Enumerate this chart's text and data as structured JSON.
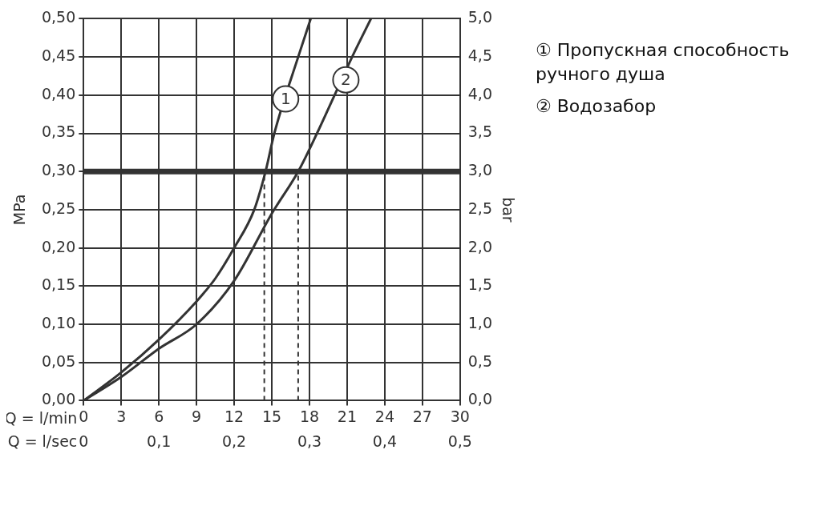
{
  "chart_data": {
    "type": "line",
    "xlabel": "Q = l/min",
    "x2label": "Q = l/sec",
    "ylabel": "MPa",
    "y2label": "bar",
    "xlim": [
      0,
      30
    ],
    "xticks": [
      0,
      3,
      6,
      9,
      12,
      15,
      18,
      21,
      24,
      27,
      30
    ],
    "x2lim": [
      0,
      0.5
    ],
    "x2ticks": [
      {
        "value": 0,
        "label": "0"
      },
      {
        "value": 0.1,
        "label": "0,1"
      },
      {
        "value": 0.2,
        "label": "0,2"
      },
      {
        "value": 0.3,
        "label": "0,3"
      },
      {
        "value": 0.4,
        "label": "0,4"
      },
      {
        "value": 0.5,
        "label": "0,5"
      }
    ],
    "ylim": [
      0,
      0.5
    ],
    "yticks": [
      {
        "value": 0,
        "label": "0,00"
      },
      {
        "value": 0.05,
        "label": "0,05"
      },
      {
        "value": 0.1,
        "label": "0,10"
      },
      {
        "value": 0.15,
        "label": "0,15"
      },
      {
        "value": 0.2,
        "label": "0,20"
      },
      {
        "value": 0.25,
        "label": "0,25"
      },
      {
        "value": 0.3,
        "label": "0,30"
      },
      {
        "value": 0.35,
        "label": "0,35"
      },
      {
        "value": 0.4,
        "label": "0,40"
      },
      {
        "value": 0.45,
        "label": "0,45"
      },
      {
        "value": 0.5,
        "label": "0,50"
      }
    ],
    "y2lim": [
      0,
      5
    ],
    "y2ticks": [
      {
        "value": 0,
        "label": "0,0"
      },
      {
        "value": 0.5,
        "label": "0,5"
      },
      {
        "value": 1,
        "label": "1,0"
      },
      {
        "value": 1.5,
        "label": "1,5"
      },
      {
        "value": 2,
        "label": "2,0"
      },
      {
        "value": 2.5,
        "label": "2,5"
      },
      {
        "value": 3,
        "label": "3,0"
      },
      {
        "value": 3.5,
        "label": "3,5"
      },
      {
        "value": 4,
        "label": "4,0"
      },
      {
        "value": 4.5,
        "label": "4,5"
      },
      {
        "value": 5,
        "label": "5,0"
      }
    ],
    "series": [
      {
        "name": "① Пропускная способность ручного душа",
        "color": "#333333",
        "x": [
          0,
          3,
          6,
          9,
          10.5,
          12,
          13.6,
          14.5,
          15.2,
          17.1,
          18.1
        ],
        "values": [
          0,
          0.037,
          0.08,
          0.13,
          0.16,
          0.2,
          0.25,
          0.3,
          0.35,
          0.45,
          0.5
        ]
      },
      {
        "name": "② Водозабор",
        "color": "#333333",
        "x": [
          0,
          3,
          6,
          9,
          12,
          15,
          17.1,
          18.6,
          20,
          21.4,
          22.9
        ],
        "values": [
          0,
          0.031,
          0.068,
          0.1,
          0.157,
          0.245,
          0.3,
          0.35,
          0.4,
          0.45,
          0.5
        ]
      }
    ],
    "ref_lines": [
      {
        "axis": "y",
        "value": 0.3,
        "color": "#333333",
        "line_style": "solid"
      },
      {
        "axis": "x",
        "value": 14.4,
        "color": "#333333",
        "line_style": "dashed"
      },
      {
        "axis": "x",
        "value": 17.1,
        "color": "#333333",
        "line_style": "dashed"
      }
    ],
    "annotations": [
      {
        "text": "1",
        "x": 16.1,
        "y": 0.395
      },
      {
        "text": "2",
        "x": 20.9,
        "y": 0.42
      }
    ],
    "grid": true,
    "legend": "right",
    "marker": "none",
    "line_style": "solid"
  }
}
